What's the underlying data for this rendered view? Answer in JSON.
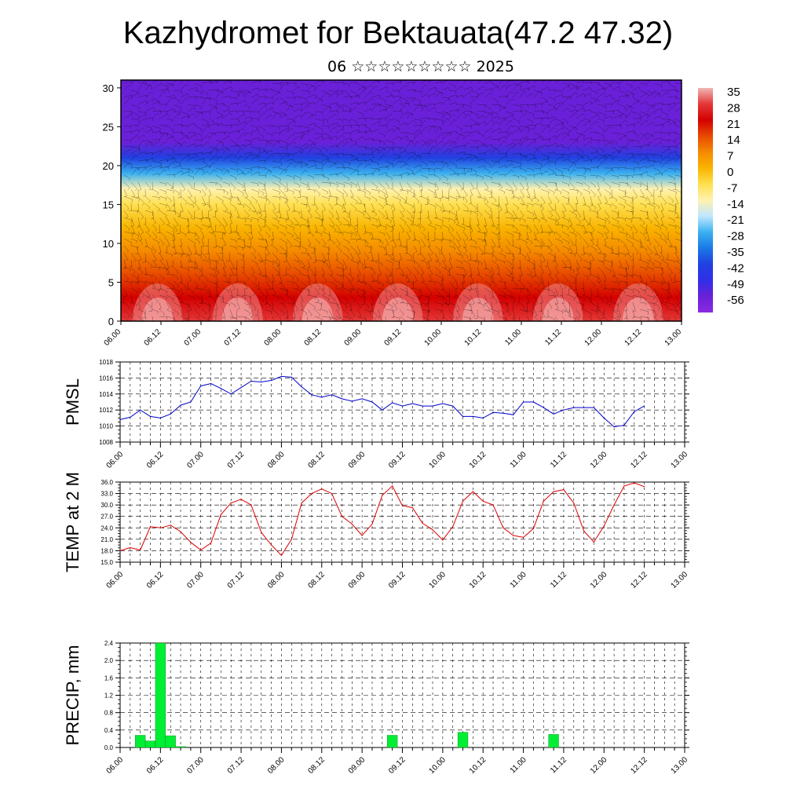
{
  "title": "Kazhydromet for Bektauata(47.2 47.32)",
  "subtitle": "06 ☆☆☆☆☆☆☆☆☆ 2025",
  "time_labels": [
    "06.00",
    "06.12",
    "07.00",
    "07.12",
    "08.00",
    "08.12",
    "09.00",
    "09.12",
    "10.00",
    "10.12",
    "11.00",
    "11.12",
    "12.00",
    "12.12",
    "13.00"
  ],
  "chart_data": [
    {
      "type": "heatmap",
      "yticks": [
        "0",
        "5",
        "10",
        "15",
        "20",
        "25",
        "30"
      ],
      "ylim": [
        0,
        31
      ],
      "xlim": [
        0,
        168
      ],
      "colorbar_labels": [
        "35",
        "28",
        "21",
        "14",
        "7",
        "0",
        "-7",
        "-14",
        "-21",
        "-28",
        "-35",
        "-42",
        "-49",
        "-56"
      ],
      "colorbar_colors": [
        "#f2b6b6",
        "#e43838",
        "#d40000",
        "#e84a00",
        "#f58a00",
        "#f9b400",
        "#ffe050",
        "#fff2b0",
        "#bfe6ff",
        "#3ab0f0",
        "#1a78e6",
        "#2040e0",
        "#3030e8",
        "#6a20d8",
        "#8a2be2"
      ],
      "temperature_profile": {
        "altitudes": [
          0,
          3,
          6,
          9,
          12,
          15,
          17,
          19,
          21,
          23,
          25,
          28,
          31
        ],
        "values": [
          28,
          24,
          18,
          12,
          5,
          -3,
          -12,
          -24,
          -38,
          -50,
          -56,
          -54,
          -50
        ]
      }
    },
    {
      "type": "line",
      "name": "PMSL",
      "ylabel": "PMSL",
      "ylim": [
        1008,
        1018
      ],
      "yticks": [
        "1008",
        "1010",
        "1012",
        "1014",
        "1016",
        "1018"
      ],
      "color": "#0000cc",
      "x": [
        0,
        6,
        12,
        18,
        24,
        30,
        36,
        42,
        48,
        54,
        60,
        66,
        72,
        78,
        84,
        90,
        96,
        102,
        108,
        114,
        120,
        126,
        132,
        138,
        144,
        150,
        156,
        162
      ],
      "values": [
        1010.8,
        1012.0,
        1011.0,
        1012.6,
        1015.0,
        1014.0,
        1015.5,
        1016.2,
        1014.0,
        1013.4,
        1013.2,
        1011.8,
        1012.9,
        1012.5,
        1012.8,
        1011.2,
        1011.0,
        1011.7,
        1011.5,
        1013.0,
        1011.5,
        1012.3,
        1012.3,
        1011.0,
        1009.9,
        1011.8,
        1012.5,
        1012.5
      ],
      "x_points": [
        0,
        3,
        6,
        9,
        12,
        15,
        18,
        21,
        24,
        27,
        30,
        33,
        36,
        39,
        42,
        45,
        48,
        51,
        54,
        57,
        60,
        63,
        66,
        69,
        72,
        75,
        78,
        81,
        84,
        87,
        90,
        93,
        96,
        99,
        102,
        105,
        108,
        111,
        114,
        117,
        120,
        123,
        126,
        129,
        132,
        135,
        138,
        141,
        144,
        147,
        150,
        153,
        156
      ],
      "y_points": [
        1010.8,
        1011.1,
        1012.0,
        1011.2,
        1011.0,
        1011.5,
        1012.6,
        1013.0,
        1015.0,
        1015.3,
        1014.7,
        1014.0,
        1014.8,
        1015.6,
        1015.5,
        1015.7,
        1016.2,
        1016.1,
        1014.9,
        1013.9,
        1013.6,
        1013.9,
        1013.4,
        1013.1,
        1013.4,
        1013.0,
        1012.0,
        1012.9,
        1012.5,
        1012.8,
        1012.5,
        1012.5,
        1012.8,
        1012.5,
        1011.2,
        1011.2,
        1011.0,
        1011.7,
        1011.6,
        1011.4,
        1013.0,
        1013.0,
        1012.3,
        1011.5,
        1012.0,
        1012.3,
        1012.3,
        1012.3,
        1011.0,
        1009.9,
        1010.1,
        1011.8,
        1012.5
      ]
    },
    {
      "type": "line",
      "name": "TEMP at 2 M",
      "ylabel": "TEMP at 2 M",
      "ylim": [
        15,
        36
      ],
      "yticks": [
        "15.0",
        "18.0",
        "21.0",
        "24.0",
        "27.0",
        "30.0",
        "33.0",
        "36.0"
      ],
      "color": "#dd0000",
      "x": [
        0,
        3,
        6,
        9,
        12,
        15,
        18,
        21,
        24,
        27,
        30,
        33,
        36,
        39,
        42,
        45,
        48,
        51,
        54,
        57,
        60,
        63,
        66,
        69,
        72,
        75,
        78,
        81,
        84,
        87,
        90,
        93,
        96,
        99,
        102,
        105,
        108,
        111,
        114,
        117,
        120,
        123,
        126,
        129,
        132,
        135,
        138,
        141,
        144,
        147,
        150,
        153,
        156
      ],
      "values": [
        18.0,
        18.8,
        18.2,
        24.3,
        24.0,
        24.7,
        23.0,
        20.2,
        18.2,
        20.0,
        27.5,
        30.5,
        31.5,
        30.0,
        22.8,
        19.5,
        16.8,
        21.0,
        30.5,
        33.0,
        34.2,
        33.0,
        27.0,
        25.0,
        22.0,
        25.0,
        32.5,
        35.0,
        29.8,
        29.3,
        25.2,
        23.5,
        20.8,
        24.3,
        31.0,
        33.5,
        31.0,
        30.0,
        24.0,
        22.0,
        21.5,
        23.8,
        31.0,
        33.5,
        34.0,
        30.5,
        23.2,
        20.3,
        24.5,
        30.0,
        35.0,
        35.8,
        34.8
      ]
    },
    {
      "type": "bar",
      "name": "PRECIP, mm",
      "ylabel": "PRECIP, mm",
      "ylim": [
        0,
        2.4
      ],
      "yticks": [
        "0.0",
        "0.4",
        "0.8",
        "1.2",
        "1.6",
        "2.0",
        "2.4"
      ],
      "color": "#00ee33",
      "bars": [
        {
          "x": 6,
          "value": 0.28
        },
        {
          "x": 9,
          "value": 0.15
        },
        {
          "x": 12,
          "value": 2.4
        },
        {
          "x": 15,
          "value": 0.27
        },
        {
          "x": 18,
          "value": 0.02
        },
        {
          "x": 81,
          "value": 0.28
        },
        {
          "x": 102,
          "value": 0.35
        },
        {
          "x": 129,
          "value": 0.3
        }
      ]
    }
  ]
}
